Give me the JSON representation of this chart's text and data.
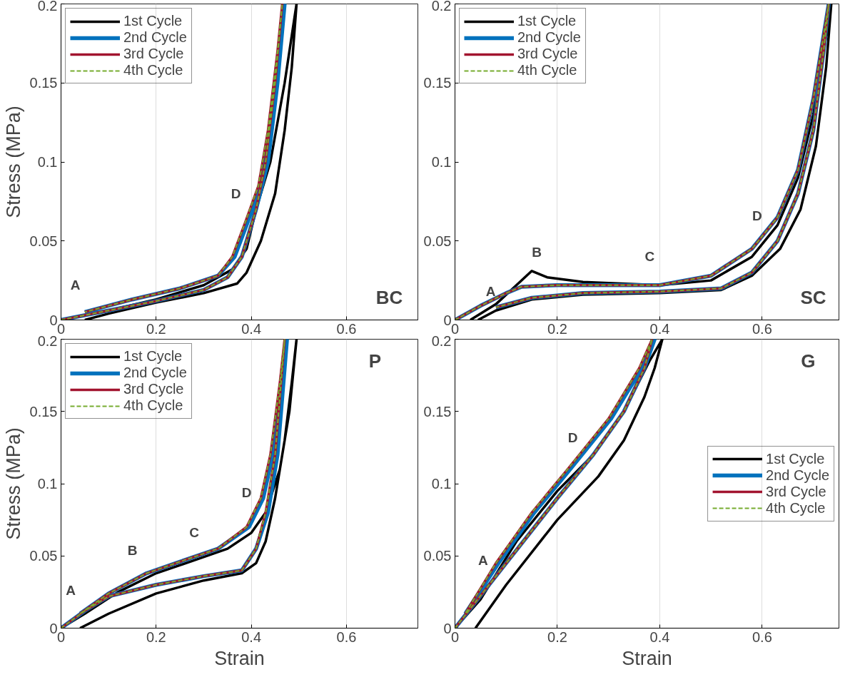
{
  "chart_data": [
    {
      "type": "line",
      "ylabel": "Stress (MPa)",
      "xlim": [
        0,
        0.75
      ],
      "ylim": [
        0,
        0.2
      ],
      "xticks": [
        0,
        0.2,
        0.4,
        0.6
      ],
      "yticks": [
        0,
        0.05,
        0.1,
        0.15,
        0.2
      ],
      "grid": "x",
      "legend": "top left",
      "annotations": [
        "A",
        "D",
        "BC"
      ],
      "series": [
        {
          "name": "1st Cycle",
          "color": "#000000",
          "x": [
            0.05,
            0.1,
            0.2,
            0.3,
            0.37,
            0.39,
            0.42,
            0.45,
            0.47,
            0.485,
            0.495,
            0.47,
            0.44,
            0.41,
            0.39,
            0.36,
            0.3,
            0.2,
            0.1,
            0
          ],
          "values": [
            0,
            0.004,
            0.011,
            0.017,
            0.023,
            0.03,
            0.05,
            0.08,
            0.12,
            0.16,
            0.2,
            0.15,
            0.1,
            0.07,
            0.045,
            0.032,
            0.022,
            0.013,
            0.006,
            0
          ]
        },
        {
          "name": "2nd Cycle",
          "color": "#0072bd",
          "x": [
            0,
            0.1,
            0.2,
            0.3,
            0.35,
            0.38,
            0.41,
            0.435,
            0.455,
            0.47,
            0.46,
            0.44,
            0.42,
            0.39,
            0.365,
            0.33,
            0.25,
            0.15,
            0.05
          ],
          "values": [
            0,
            0.006,
            0.012,
            0.019,
            0.027,
            0.04,
            0.07,
            0.1,
            0.15,
            0.2,
            0.17,
            0.12,
            0.085,
            0.06,
            0.04,
            0.028,
            0.02,
            0.013,
            0.005
          ]
        },
        {
          "name": "3rd Cycle",
          "color": "#a2142f",
          "x": [
            0,
            0.1,
            0.2,
            0.3,
            0.35,
            0.38,
            0.41,
            0.43,
            0.45,
            0.465,
            0.455,
            0.435,
            0.415,
            0.385,
            0.36,
            0.33,
            0.25,
            0.15,
            0.05
          ],
          "values": [
            0,
            0.006,
            0.012,
            0.019,
            0.027,
            0.04,
            0.07,
            0.1,
            0.15,
            0.2,
            0.17,
            0.12,
            0.085,
            0.06,
            0.04,
            0.028,
            0.02,
            0.013,
            0.005
          ]
        },
        {
          "name": "4th Cycle",
          "color": "#77ac30",
          "line_style": "dashed",
          "x": [
            0,
            0.1,
            0.2,
            0.3,
            0.35,
            0.38,
            0.41,
            0.43,
            0.45,
            0.465,
            0.455,
            0.435,
            0.415,
            0.385,
            0.36,
            0.33,
            0.25,
            0.15,
            0.05
          ],
          "values": [
            0,
            0.006,
            0.012,
            0.019,
            0.027,
            0.04,
            0.07,
            0.1,
            0.15,
            0.2,
            0.17,
            0.12,
            0.085,
            0.06,
            0.04,
            0.028,
            0.02,
            0.013,
            0.005
          ]
        }
      ]
    },
    {
      "type": "line",
      "xlim": [
        0,
        0.75
      ],
      "ylim": [
        0,
        0.2
      ],
      "xticks": [
        0,
        0.2,
        0.4,
        0.6
      ],
      "yticks": [
        0,
        0.05,
        0.1,
        0.15,
        0.2
      ],
      "grid": "x",
      "legend": "top left",
      "annotations": [
        "A",
        "B",
        "C",
        "D",
        "SC"
      ],
      "series": [
        {
          "name": "1st Cycle",
          "color": "#000000",
          "x": [
            0.03,
            0.08,
            0.12,
            0.15,
            0.18,
            0.25,
            0.4,
            0.5,
            0.58,
            0.63,
            0.67,
            0.7,
            0.72,
            0.735,
            0.725,
            0.705,
            0.675,
            0.635,
            0.58,
            0.52,
            0.4,
            0.25,
            0.15,
            0.08,
            0.045
          ],
          "values": [
            0,
            0.01,
            0.022,
            0.031,
            0.027,
            0.024,
            0.022,
            0.025,
            0.04,
            0.06,
            0.09,
            0.13,
            0.17,
            0.2,
            0.16,
            0.11,
            0.07,
            0.045,
            0.028,
            0.019,
            0.017,
            0.016,
            0.013,
            0.006,
            0
          ]
        },
        {
          "name": "2nd Cycle",
          "color": "#0072bd",
          "x": [
            0,
            0.05,
            0.1,
            0.13,
            0.2,
            0.4,
            0.5,
            0.58,
            0.63,
            0.67,
            0.7,
            0.72,
            0.73,
            0.72,
            0.7,
            0.67,
            0.63,
            0.58,
            0.52,
            0.4,
            0.25,
            0.15,
            0.08
          ],
          "values": [
            0,
            0.009,
            0.017,
            0.021,
            0.022,
            0.022,
            0.028,
            0.045,
            0.065,
            0.095,
            0.14,
            0.18,
            0.2,
            0.17,
            0.12,
            0.08,
            0.05,
            0.03,
            0.02,
            0.018,
            0.017,
            0.014,
            0.008
          ]
        },
        {
          "name": "3rd Cycle",
          "color": "#a2142f",
          "x": [
            0,
            0.05,
            0.1,
            0.13,
            0.2,
            0.4,
            0.5,
            0.58,
            0.63,
            0.67,
            0.7,
            0.72,
            0.73,
            0.72,
            0.7,
            0.67,
            0.63,
            0.58,
            0.52,
            0.4,
            0.25,
            0.15,
            0.08
          ],
          "values": [
            0,
            0.009,
            0.017,
            0.021,
            0.022,
            0.022,
            0.028,
            0.045,
            0.065,
            0.095,
            0.14,
            0.18,
            0.2,
            0.17,
            0.12,
            0.08,
            0.05,
            0.03,
            0.02,
            0.018,
            0.017,
            0.014,
            0.008
          ]
        },
        {
          "name": "4th Cycle",
          "color": "#77ac30",
          "line_style": "dashed",
          "x": [
            0,
            0.05,
            0.1,
            0.13,
            0.2,
            0.4,
            0.5,
            0.58,
            0.63,
            0.67,
            0.7,
            0.72,
            0.73,
            0.72,
            0.7,
            0.67,
            0.63,
            0.58,
            0.52,
            0.4,
            0.25,
            0.15,
            0.08
          ],
          "values": [
            0,
            0.009,
            0.017,
            0.021,
            0.022,
            0.022,
            0.028,
            0.045,
            0.065,
            0.095,
            0.14,
            0.18,
            0.2,
            0.17,
            0.12,
            0.08,
            0.05,
            0.03,
            0.02,
            0.018,
            0.017,
            0.014,
            0.008
          ]
        }
      ]
    },
    {
      "type": "line",
      "ylabel": "Stress (MPa)",
      "xlabel": "Strain",
      "xlim": [
        0,
        0.75
      ],
      "ylim": [
        0,
        0.2
      ],
      "xticks": [
        0,
        0.2,
        0.4,
        0.6
      ],
      "yticks": [
        0,
        0.05,
        0.1,
        0.15,
        0.2
      ],
      "grid": "x",
      "legend": "top left",
      "annotations": [
        "A",
        "B",
        "C",
        "D",
        "P"
      ],
      "series": [
        {
          "name": "1st Cycle",
          "color": "#000000",
          "x": [
            0.04,
            0.1,
            0.2,
            0.3,
            0.38,
            0.41,
            0.43,
            0.45,
            0.47,
            0.485,
            0.495,
            0.48,
            0.46,
            0.43,
            0.4,
            0.35,
            0.28,
            0.2,
            0.12,
            0.05,
            0
          ],
          "values": [
            0,
            0.01,
            0.024,
            0.033,
            0.038,
            0.045,
            0.06,
            0.09,
            0.13,
            0.17,
            0.2,
            0.15,
            0.11,
            0.08,
            0.066,
            0.055,
            0.047,
            0.038,
            0.025,
            0.01,
            0
          ]
        },
        {
          "name": "2nd Cycle",
          "color": "#0072bd",
          "x": [
            0,
            0.05,
            0.1,
            0.2,
            0.3,
            0.38,
            0.41,
            0.435,
            0.455,
            0.465,
            0.475,
            0.465,
            0.445,
            0.425,
            0.395,
            0.33,
            0.25,
            0.18,
            0.1,
            0.04
          ],
          "values": [
            0,
            0.012,
            0.022,
            0.03,
            0.036,
            0.04,
            0.055,
            0.08,
            0.12,
            0.16,
            0.2,
            0.17,
            0.12,
            0.09,
            0.07,
            0.055,
            0.046,
            0.038,
            0.024,
            0.01
          ]
        },
        {
          "name": "3rd Cycle",
          "color": "#a2142f",
          "x": [
            0,
            0.05,
            0.1,
            0.2,
            0.3,
            0.38,
            0.41,
            0.43,
            0.45,
            0.46,
            0.47,
            0.46,
            0.44,
            0.42,
            0.39,
            0.33,
            0.25,
            0.18,
            0.1,
            0.04
          ],
          "values": [
            0,
            0.012,
            0.022,
            0.03,
            0.036,
            0.04,
            0.055,
            0.08,
            0.12,
            0.16,
            0.2,
            0.17,
            0.12,
            0.09,
            0.07,
            0.055,
            0.046,
            0.038,
            0.024,
            0.01
          ]
        },
        {
          "name": "4th Cycle",
          "color": "#77ac30",
          "line_style": "dashed",
          "x": [
            0,
            0.05,
            0.1,
            0.2,
            0.3,
            0.38,
            0.41,
            0.43,
            0.45,
            0.46,
            0.47,
            0.46,
            0.44,
            0.42,
            0.39,
            0.33,
            0.25,
            0.18,
            0.1,
            0.04
          ],
          "values": [
            0,
            0.012,
            0.022,
            0.03,
            0.036,
            0.04,
            0.055,
            0.08,
            0.12,
            0.16,
            0.2,
            0.17,
            0.12,
            0.09,
            0.07,
            0.055,
            0.046,
            0.038,
            0.024,
            0.01
          ]
        }
      ]
    },
    {
      "type": "line",
      "xlabel": "Strain",
      "xlim": [
        0,
        0.75
      ],
      "ylim": [
        0,
        0.2
      ],
      "xticks": [
        0,
        0.2,
        0.4,
        0.6
      ],
      "yticks": [
        0,
        0.05,
        0.1,
        0.15,
        0.2
      ],
      "grid": "x",
      "legend": "right",
      "annotations": [
        "A",
        "D",
        "G"
      ],
      "series": [
        {
          "name": "1st Cycle",
          "color": "#000000",
          "x": [
            0.04,
            0.1,
            0.2,
            0.28,
            0.33,
            0.37,
            0.39,
            0.405,
            0.38,
            0.33,
            0.27,
            0.2,
            0.12,
            0.05,
            0
          ],
          "values": [
            0,
            0.03,
            0.075,
            0.105,
            0.13,
            0.16,
            0.18,
            0.2,
            0.185,
            0.15,
            0.12,
            0.095,
            0.06,
            0.02,
            0
          ]
        },
        {
          "name": "2nd Cycle",
          "color": "#0072bd",
          "x": [
            0,
            0.1,
            0.2,
            0.27,
            0.33,
            0.37,
            0.39,
            0.365,
            0.305,
            0.225,
            0.155,
            0.085,
            0.02
          ],
          "values": [
            0,
            0.045,
            0.09,
            0.12,
            0.15,
            0.18,
            0.2,
            0.18,
            0.145,
            0.11,
            0.08,
            0.045,
            0.01
          ]
        },
        {
          "name": "3rd Cycle",
          "color": "#a2142f",
          "x": [
            0,
            0.1,
            0.2,
            0.27,
            0.33,
            0.37,
            0.385,
            0.36,
            0.3,
            0.22,
            0.15,
            0.08,
            0.02
          ],
          "values": [
            0,
            0.045,
            0.09,
            0.12,
            0.15,
            0.18,
            0.2,
            0.18,
            0.145,
            0.11,
            0.08,
            0.045,
            0.01
          ]
        },
        {
          "name": "4th Cycle",
          "color": "#77ac30",
          "line_style": "dashed",
          "x": [
            0,
            0.1,
            0.2,
            0.27,
            0.33,
            0.37,
            0.385,
            0.36,
            0.3,
            0.22,
            0.15,
            0.08,
            0.02
          ],
          "values": [
            0,
            0.045,
            0.09,
            0.12,
            0.15,
            0.18,
            0.2,
            0.18,
            0.145,
            0.11,
            0.08,
            0.045,
            0.01
          ]
        }
      ]
    }
  ]
}
